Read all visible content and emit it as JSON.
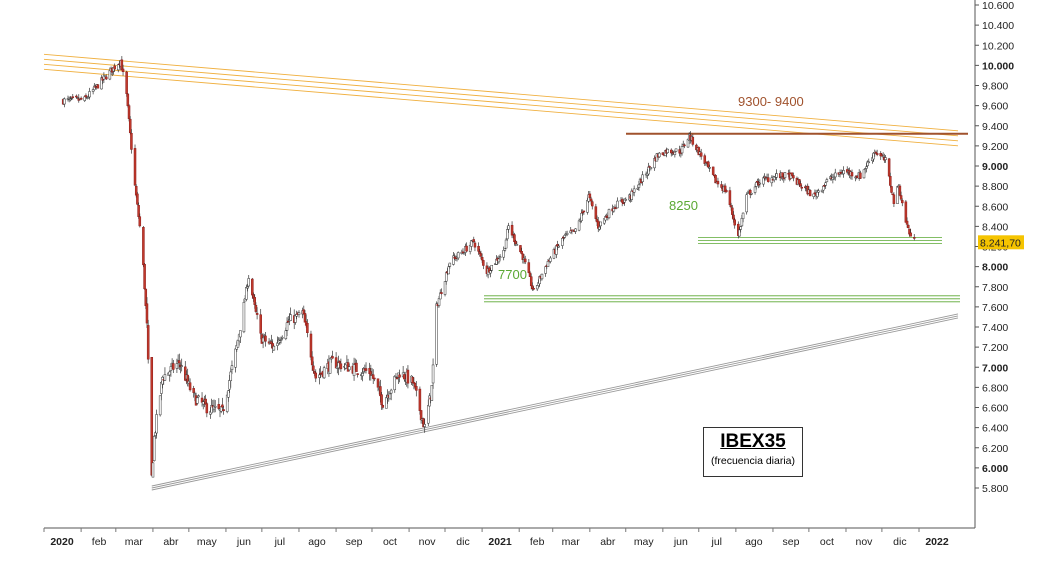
{
  "chart_data": {
    "type": "candlestick",
    "title": "IBEX35",
    "subtitle": "(frecuencia diaria)",
    "ylim": [
      5700,
      10600
    ],
    "yticks": [
      "10.600",
      "10.400",
      "10.200",
      "10.000",
      "9.800",
      "9.600",
      "9.400",
      "9.200",
      "9.000",
      "8.800",
      "8.600",
      "8.400",
      "8.200",
      "8.000",
      "7.800",
      "7.600",
      "7.400",
      "7.200",
      "7.000",
      "6.800",
      "6.600",
      "6.400",
      "6.200",
      "6.000",
      "5.800"
    ],
    "bold_yticks": [
      "10.000",
      "9.000",
      "8.000",
      "7.000",
      "6.000"
    ],
    "xticks": [
      "2020",
      "feb",
      "mar",
      "abr",
      "may",
      "jun",
      "jul",
      "ago",
      "sep",
      "oct",
      "nov",
      "dic",
      "2021",
      "feb",
      "mar",
      "abr",
      "may",
      "jun",
      "jul",
      "ago",
      "sep",
      "oct",
      "nov",
      "dic",
      "2022"
    ],
    "bold_xticks": [
      "2020",
      "2021",
      "2022"
    ],
    "x_range": [
      "2020-01-01",
      "2022-03-01"
    ],
    "last_price": 8241.7,
    "last_price_label": "8.241,70",
    "last_price_color": "#f5c400",
    "levels": [
      {
        "label": "9300- 9400",
        "value": 9320,
        "color": "#a0522d",
        "x_start": "2021-04-20",
        "x_end": "2022-02-25"
      },
      {
        "label": "8250",
        "value": 8260,
        "color": "#5aa832",
        "x_start": "2021-07-15",
        "x_end": "2022-02-05"
      },
      {
        "label": "7700",
        "value": 7680,
        "color": "#5aa832",
        "x_start": "2020-12-20",
        "x_end": "2022-02-25"
      }
    ],
    "trendlines": [
      {
        "name": "resistance",
        "color": "#f0b040",
        "from": [
          "2020-01-01",
          10030
        ],
        "to": [
          "2022-02-25",
          9270
        ]
      },
      {
        "name": "support",
        "color": "#999999",
        "from": [
          "2020-03-16",
          5800
        ],
        "to": [
          "2022-02-25",
          7510
        ]
      }
    ],
    "key_points": [
      {
        "date": "2020-01-02",
        "close": 9650
      },
      {
        "date": "2020-01-20",
        "close": 9660
      },
      {
        "date": "2020-02-19",
        "close": 10050
      },
      {
        "date": "2020-02-24",
        "close": 9700
      },
      {
        "date": "2020-03-02",
        "close": 8800
      },
      {
        "date": "2020-03-06",
        "close": 8400
      },
      {
        "date": "2020-03-09",
        "close": 8000
      },
      {
        "date": "2020-03-12",
        "close": 7400
      },
      {
        "date": "2020-03-16",
        "close": 5900
      },
      {
        "date": "2020-03-18",
        "close": 6300
      },
      {
        "date": "2020-03-25",
        "close": 6900
      },
      {
        "date": "2020-04-08",
        "close": 7050
      },
      {
        "date": "2020-04-20",
        "close": 6700
      },
      {
        "date": "2020-05-01",
        "close": 6600
      },
      {
        "date": "2020-05-14",
        "close": 6550
      },
      {
        "date": "2020-05-26",
        "close": 7200
      },
      {
        "date": "2020-06-05",
        "close": 7900
      },
      {
        "date": "2020-06-15",
        "close": 7300
      },
      {
        "date": "2020-06-26",
        "close": 7200
      },
      {
        "date": "2020-07-08",
        "close": 7450
      },
      {
        "date": "2020-07-20",
        "close": 7550
      },
      {
        "date": "2020-07-31",
        "close": 6900
      },
      {
        "date": "2020-08-14",
        "close": 7050
      },
      {
        "date": "2020-08-28",
        "close": 7000
      },
      {
        "date": "2020-09-15",
        "close": 6950
      },
      {
        "date": "2020-09-25",
        "close": 6650
      },
      {
        "date": "2020-10-09",
        "close": 6950
      },
      {
        "date": "2020-10-20",
        "close": 6850
      },
      {
        "date": "2020-10-30",
        "close": 6400
      },
      {
        "date": "2020-11-05",
        "close": 6800
      },
      {
        "date": "2020-11-09",
        "close": 7600
      },
      {
        "date": "2020-11-20",
        "close": 8050
      },
      {
        "date": "2020-12-01",
        "close": 8150
      },
      {
        "date": "2020-12-10",
        "close": 8250
      },
      {
        "date": "2020-12-21",
        "close": 7950
      },
      {
        "date": "2021-01-04",
        "close": 8150
      },
      {
        "date": "2021-01-08",
        "close": 8400
      },
      {
        "date": "2021-01-20",
        "close": 8100
      },
      {
        "date": "2021-01-29",
        "close": 7750
      },
      {
        "date": "2021-02-10",
        "close": 8050
      },
      {
        "date": "2021-02-24",
        "close": 8300
      },
      {
        "date": "2021-03-05",
        "close": 8350
      },
      {
        "date": "2021-03-16",
        "close": 8700
      },
      {
        "date": "2021-03-24",
        "close": 8400
      },
      {
        "date": "2021-04-06",
        "close": 8600
      },
      {
        "date": "2021-04-20",
        "close": 8700
      },
      {
        "date": "2021-05-04",
        "close": 8950
      },
      {
        "date": "2021-05-12",
        "close": 9100
      },
      {
        "date": "2021-05-20",
        "close": 9150
      },
      {
        "date": "2021-06-01",
        "close": 9150
      },
      {
        "date": "2021-06-08",
        "close": 9300
      },
      {
        "date": "2021-06-18",
        "close": 9100
      },
      {
        "date": "2021-06-30",
        "close": 8850
      },
      {
        "date": "2021-07-09",
        "close": 8750
      },
      {
        "date": "2021-07-19",
        "close": 8300
      },
      {
        "date": "2021-07-26",
        "close": 8700
      },
      {
        "date": "2021-08-06",
        "close": 8850
      },
      {
        "date": "2021-08-20",
        "close": 8900
      },
      {
        "date": "2021-08-31",
        "close": 8900
      },
      {
        "date": "2021-09-10",
        "close": 8800
      },
      {
        "date": "2021-09-20",
        "close": 8700
      },
      {
        "date": "2021-10-01",
        "close": 8850
      },
      {
        "date": "2021-10-15",
        "close": 8950
      },
      {
        "date": "2021-10-29",
        "close": 8900
      },
      {
        "date": "2021-11-10",
        "close": 9150
      },
      {
        "date": "2021-11-19",
        "close": 9050
      },
      {
        "date": "2021-11-26",
        "close": 8650
      },
      {
        "date": "2021-11-30",
        "close": 8800
      },
      {
        "date": "2021-12-06",
        "close": 8450
      },
      {
        "date": "2021-12-10",
        "close": 8300
      },
      {
        "date": "2021-12-14",
        "close": 8241.7
      }
    ]
  }
}
